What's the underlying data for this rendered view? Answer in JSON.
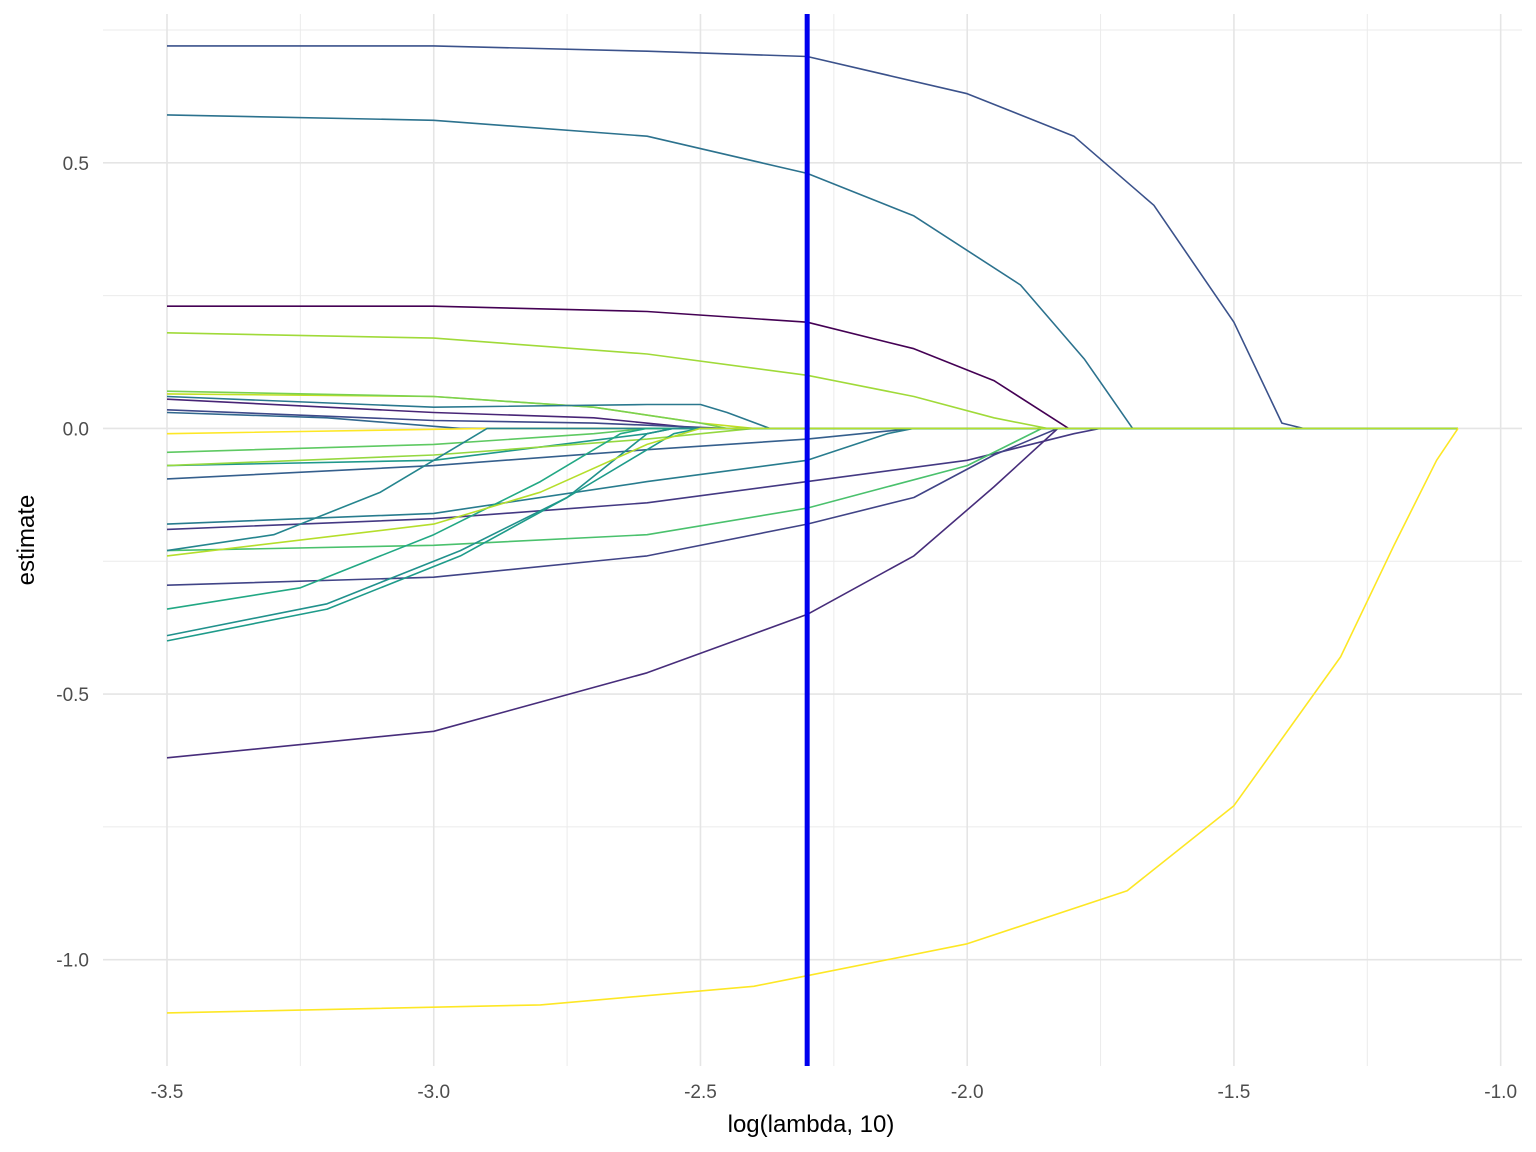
{
  "chart_data": {
    "type": "line",
    "title": "",
    "xlabel": "log(lambda, 10)",
    "ylabel": "estimate",
    "xlim": [
      -3.62,
      -0.96
    ],
    "ylim": [
      -1.2,
      0.78
    ],
    "x_ticks": [
      -3.5,
      -3.0,
      -2.5,
      -2.0,
      -1.5,
      -1.0
    ],
    "x_tick_labels": [
      "-3.5",
      "-3.0",
      "-2.5",
      "-2.0",
      "-1.5",
      "-1.0"
    ],
    "y_ticks": [
      -1.0,
      -0.5,
      0.0,
      0.5
    ],
    "y_tick_labels": [
      "-1.0",
      "-0.5",
      "0.0",
      "0.5"
    ],
    "x_minor_ticks": [
      -3.25,
      -2.75,
      -2.25,
      -1.75,
      -1.25
    ],
    "y_minor_ticks": [
      -0.75,
      -0.25,
      0.25,
      0.75
    ],
    "grid": true,
    "legend": "none",
    "vline": {
      "x": -2.3,
      "color": "#0000ee"
    },
    "zero_line": 0.0,
    "series": [
      {
        "color": "#3b528b",
        "x": [
          -3.5,
          -3.0,
          -2.6,
          -2.3,
          -2.0,
          -1.8,
          -1.65,
          -1.5,
          -1.41,
          -1.37,
          -1.08
        ],
        "y": [
          0.72,
          0.72,
          0.71,
          0.7,
          0.63,
          0.55,
          0.42,
          0.2,
          0.01,
          0.0,
          0.0
        ]
      },
      {
        "color": "#2c728e",
        "x": [
          -3.5,
          -3.0,
          -2.6,
          -2.3,
          -2.1,
          -1.9,
          -1.78,
          -1.69,
          -1.08
        ],
        "y": [
          0.59,
          0.58,
          0.55,
          0.48,
          0.4,
          0.27,
          0.13,
          0.0,
          0.0
        ]
      },
      {
        "color": "#440154",
        "x": [
          -3.5,
          -3.0,
          -2.6,
          -2.3,
          -2.1,
          -1.95,
          -1.81,
          -1.08
        ],
        "y": [
          0.23,
          0.23,
          0.22,
          0.2,
          0.15,
          0.09,
          0.0,
          0.0
        ]
      },
      {
        "color": "#a0da39",
        "x": [
          -3.5,
          -3.0,
          -2.6,
          -2.3,
          -2.1,
          -1.95,
          -1.85,
          -1.08
        ],
        "y": [
          0.18,
          0.17,
          0.14,
          0.1,
          0.06,
          0.02,
          0.0,
          0.0
        ]
      },
      {
        "color": "#c2df23",
        "x": [
          -3.5,
          -3.0,
          -2.7,
          -2.5,
          -2.4,
          -1.08
        ],
        "y": [
          0.065,
          0.06,
          0.04,
          0.01,
          0.0,
          0.0
        ]
      },
      {
        "color": "#7ad151",
        "x": [
          -3.5,
          -3.0,
          -2.7,
          -2.5,
          -2.45,
          -1.08
        ],
        "y": [
          0.07,
          0.06,
          0.04,
          0.01,
          0.0,
          0.0
        ]
      },
      {
        "color": "#2a788e",
        "x": [
          -3.5,
          -3.0,
          -2.6,
          -2.5,
          -2.45,
          -2.37,
          -1.08
        ],
        "y": [
          0.06,
          0.04,
          0.045,
          0.045,
          0.03,
          0.0,
          0.0
        ]
      },
      {
        "color": "#482576",
        "x": [
          -3.5,
          -3.0,
          -2.7,
          -2.5,
          -1.08
        ],
        "y": [
          0.055,
          0.03,
          0.02,
          0.0,
          0.0
        ]
      },
      {
        "color": "#3e4989",
        "x": [
          -3.5,
          -3.0,
          -2.7,
          -2.45,
          -1.08
        ],
        "y": [
          0.035,
          0.015,
          0.01,
          0.0,
          0.0
        ]
      },
      {
        "color": "#31688e",
        "x": [
          -3.5,
          -3.2,
          -2.95,
          -1.08
        ],
        "y": [
          0.03,
          0.02,
          0.0,
          0.0
        ]
      },
      {
        "color": "#fde725",
        "x": [
          -3.5,
          -2.9,
          -1.08
        ],
        "y": [
          -0.01,
          0.0,
          0.0
        ]
      },
      {
        "color": "#5ec962",
        "x": [
          -3.5,
          -3.0,
          -2.7,
          -2.6,
          -1.08
        ],
        "y": [
          -0.045,
          -0.03,
          -0.01,
          0.0,
          0.0
        ]
      },
      {
        "color": "#1f988b",
        "x": [
          -3.5,
          -3.0,
          -2.6,
          -2.55,
          -1.08
        ],
        "y": [
          -0.07,
          -0.06,
          -0.01,
          0.0,
          0.0
        ]
      },
      {
        "color": "#95d840",
        "x": [
          -3.5,
          -3.0,
          -2.6,
          -2.4,
          -1.08
        ],
        "y": [
          -0.07,
          -0.05,
          -0.02,
          0.0,
          0.0
        ]
      },
      {
        "color": "#355f8d",
        "x": [
          -3.5,
          -3.0,
          -2.6,
          -2.3,
          -2.15,
          -2.1,
          -1.08
        ],
        "y": [
          -0.095,
          -0.07,
          -0.04,
          -0.02,
          -0.005,
          0.0,
          0.0
        ]
      },
      {
        "color": "#287c8e",
        "x": [
          -3.5,
          -3.0,
          -2.6,
          -2.3,
          -2.15,
          -2.1,
          -1.08
        ],
        "y": [
          -0.18,
          -0.16,
          -0.1,
          -0.06,
          -0.01,
          0.0,
          0.0
        ]
      },
      {
        "color": "#443983",
        "x": [
          -3.5,
          -3.0,
          -2.6,
          -2.3,
          -2.0,
          -1.8,
          -1.75,
          -1.08
        ],
        "y": [
          -0.19,
          -0.17,
          -0.14,
          -0.1,
          -0.06,
          -0.01,
          0.0,
          0.0
        ]
      },
      {
        "color": "#4ac16d",
        "x": [
          -3.5,
          -3.0,
          -2.6,
          -2.3,
          -2.0,
          -1.86,
          -1.08
        ],
        "y": [
          -0.23,
          -0.22,
          -0.2,
          -0.15,
          -0.07,
          0.0,
          0.0
        ]
      },
      {
        "color": "#414487",
        "x": [
          -3.5,
          -3.0,
          -2.6,
          -2.3,
          -2.1,
          -1.95,
          -1.83,
          -1.08
        ],
        "y": [
          -0.295,
          -0.28,
          -0.24,
          -0.18,
          -0.13,
          -0.05,
          0.0,
          0.0
        ]
      },
      {
        "color": "#472d7b",
        "x": [
          -3.5,
          -3.0,
          -2.6,
          -2.3,
          -2.1,
          -1.95,
          -1.83,
          -1.08
        ],
        "y": [
          -0.62,
          -0.57,
          -0.46,
          -0.35,
          -0.24,
          -0.11,
          0.0,
          0.0
        ]
      },
      {
        "color": "#25858e",
        "x": [
          -3.5,
          -3.3,
          -3.1,
          -2.95,
          -2.9,
          -1.08
        ],
        "y": [
          -0.23,
          -0.2,
          -0.12,
          -0.03,
          0.0,
          0.0
        ]
      },
      {
        "color": "#22a884",
        "x": [
          -3.5,
          -3.25,
          -3.0,
          -2.8,
          -2.65,
          -2.6,
          -1.08
        ],
        "y": [
          -0.34,
          -0.3,
          -0.2,
          -0.1,
          -0.01,
          0.0,
          0.0
        ]
      },
      {
        "color": "#21918c",
        "x": [
          -3.5,
          -3.2,
          -2.95,
          -2.75,
          -2.6,
          -2.55,
          -1.08
        ],
        "y": [
          -0.39,
          -0.33,
          -0.23,
          -0.13,
          -0.01,
          0.0,
          0.0
        ]
      },
      {
        "color": "#1e9b8a",
        "x": [
          -3.5,
          -3.2,
          -2.95,
          -2.75,
          -2.55,
          -2.5,
          -1.08
        ],
        "y": [
          -0.4,
          -0.34,
          -0.24,
          -0.13,
          -0.01,
          0.0,
          0.0
        ]
      },
      {
        "color": "#b5de2b",
        "x": [
          -3.5,
          -3.0,
          -2.8,
          -2.6,
          -2.5,
          -1.08
        ],
        "y": [
          -0.24,
          -0.18,
          -0.12,
          -0.03,
          0.0,
          0.0
        ]
      },
      {
        "color": "#fde725",
        "x": [
          -3.5,
          -2.8,
          -2.4,
          -2.3,
          -2.0,
          -1.7,
          -1.5,
          -1.3,
          -1.2,
          -1.12,
          -1.08
        ],
        "y": [
          -1.1,
          -1.085,
          -1.05,
          -1.03,
          -0.97,
          -0.87,
          -0.71,
          -0.43,
          -0.22,
          -0.06,
          0.0
        ]
      }
    ]
  }
}
